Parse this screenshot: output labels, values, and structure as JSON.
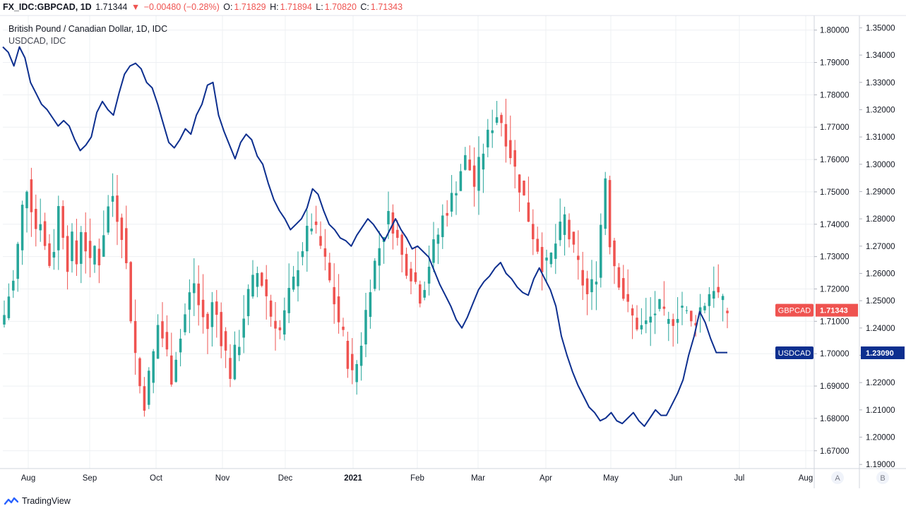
{
  "header": {
    "symbol": "FX_IDC:GBPCAD, 1D",
    "last": "1.71344",
    "arrow": "▼",
    "change": "−0.00480 (−0.28%)",
    "o_label": "O:",
    "o_value": "1.71829",
    "h_label": "H:",
    "h_value": "1.71894",
    "l_label": "L:",
    "l_value": "1.70820",
    "c_label": "C:",
    "c_value": "1.71343"
  },
  "legend": {
    "main": "British Pound / Canadian Dollar, 1D, IDC",
    "compare": "USDCAD, IDC"
  },
  "footer": {
    "brand": "TradingView"
  },
  "scale_buttons": {
    "a": "A",
    "b": "B"
  },
  "colors": {
    "up": "#26a69a",
    "down": "#ef5350",
    "usdcad": "#0d2f8f",
    "grid": "#eef0f3",
    "axis_text": "#131722",
    "badge_gbp": "#ef5350",
    "badge_usd": "#0d2f8f"
  },
  "chart_data": {
    "type": "candlestick+line",
    "x_ticks": [
      "Aug",
      "Sep",
      "Oct",
      "Nov",
      "Dec",
      "2021",
      "Feb",
      "Mar",
      "Apr",
      "May",
      "Jun",
      "Jul",
      "Aug"
    ],
    "left_axis": {
      "ticks": [
        "1.80000",
        "1.79000",
        "1.78000",
        "1.77000",
        "1.76000",
        "1.75000",
        "1.74000",
        "1.73000",
        "1.72000",
        "1.71000",
        "1.70000",
        "1.69000",
        "1.68000",
        "1.67000"
      ],
      "range": [
        1.6645,
        1.8045
      ]
    },
    "right_axis": {
      "ticks": [
        "1.35000",
        "1.34000",
        "1.33000",
        "1.32000",
        "1.31000",
        "1.30000",
        "1.29000",
        "1.28000",
        "1.27000",
        "1.26000",
        "1.25000",
        "1.24000",
        "1.23000",
        "1.22000",
        "1.21000",
        "1.20000",
        "1.19000"
      ],
      "range": [
        1.1885,
        1.3545
      ]
    },
    "last_price_labels": [
      {
        "series": "GBPCAD",
        "value": "1.71343"
      },
      {
        "series": "USDCAD",
        "value": "1.23090"
      }
    ],
    "gbpcad_path": [
      1.712,
      1.718,
      1.722,
      1.733,
      1.745,
      1.752,
      1.746,
      1.739,
      1.742,
      1.733,
      1.728,
      1.733,
      1.745,
      1.738,
      1.728,
      1.735,
      1.728,
      1.739,
      1.733,
      1.727,
      1.733,
      1.729,
      1.738,
      1.745,
      1.749,
      1.743,
      1.738,
      1.727,
      1.712,
      1.7,
      1.69,
      1.685,
      1.693,
      1.7,
      1.709,
      1.705,
      1.7,
      1.693,
      1.7,
      1.705,
      1.712,
      1.718,
      1.722,
      1.715,
      1.711,
      1.708,
      1.715,
      1.712,
      1.705,
      1.7,
      1.694,
      1.7,
      1.704,
      1.712,
      1.718,
      1.722,
      1.725,
      1.722,
      1.718,
      1.712,
      1.71,
      1.707,
      1.712,
      1.718,
      1.722,
      1.728,
      1.733,
      1.737,
      1.74,
      1.737,
      1.733,
      1.728,
      1.722,
      1.716,
      1.71,
      1.705,
      1.698,
      1.693,
      1.697,
      1.704,
      1.713,
      1.722,
      1.728,
      1.733,
      1.738,
      1.742,
      1.74,
      1.735,
      1.73,
      1.727,
      1.725,
      1.722,
      1.718,
      1.722,
      1.728,
      1.733,
      1.737,
      1.742,
      1.745,
      1.748,
      1.752,
      1.757,
      1.76,
      1.757,
      1.752,
      1.758,
      1.763,
      1.767,
      1.771,
      1.774,
      1.772,
      1.767,
      1.762,
      1.757,
      1.752,
      1.748,
      1.742,
      1.737,
      1.733,
      1.728,
      1.727,
      1.73,
      1.734,
      1.738,
      1.742,
      1.736,
      1.731,
      1.727,
      1.722,
      1.718,
      1.721,
      1.725,
      1.74,
      1.755,
      1.735,
      1.728,
      1.723,
      1.718,
      1.714,
      1.711,
      1.709,
      1.708,
      1.709,
      1.711,
      1.713,
      1.714,
      1.711,
      1.709,
      1.711,
      1.713,
      1.715,
      1.712,
      1.709,
      1.711,
      1.714,
      1.716,
      1.719,
      1.721,
      1.718,
      1.715,
      1.713
    ],
    "usdcad_path": [
      1.343,
      1.341,
      1.336,
      1.343,
      1.339,
      1.33,
      1.326,
      1.322,
      1.32,
      1.317,
      1.314,
      1.316,
      1.314,
      1.309,
      1.305,
      1.307,
      1.31,
      1.319,
      1.323,
      1.32,
      1.318,
      1.326,
      1.333,
      1.336,
      1.337,
      1.335,
      1.33,
      1.328,
      1.322,
      1.315,
      1.308,
      1.306,
      1.309,
      1.313,
      1.311,
      1.318,
      1.322,
      1.329,
      1.33,
      1.318,
      1.312,
      1.307,
      1.302,
      1.308,
      1.311,
      1.309,
      1.303,
      1.3,
      1.293,
      1.287,
      1.283,
      1.28,
      1.276,
      1.278,
      1.28,
      1.284,
      1.291,
      1.289,
      1.283,
      1.278,
      1.276,
      1.273,
      1.272,
      1.27,
      1.274,
      1.277,
      1.28,
      1.278,
      1.275,
      1.272,
      1.276,
      1.28,
      1.276,
      1.273,
      1.269,
      1.27,
      1.268,
      1.266,
      1.261,
      1.256,
      1.252,
      1.248,
      1.243,
      1.24,
      1.244,
      1.249,
      1.254,
      1.257,
      1.259,
      1.262,
      1.264,
      1.26,
      1.258,
      1.255,
      1.253,
      1.252,
      1.258,
      1.262,
      1.258,
      1.254,
      1.248,
      1.237,
      1.23,
      1.224,
      1.219,
      1.215,
      1.211,
      1.209,
      1.206,
      1.207,
      1.209,
      1.206,
      1.205,
      1.207,
      1.209,
      1.206,
      1.204,
      1.207,
      1.21,
      1.208,
      1.208,
      1.212,
      1.216,
      1.221,
      1.23,
      1.237,
      1.246,
      1.242,
      1.236,
      1.231,
      1.231,
      1.231
    ]
  }
}
